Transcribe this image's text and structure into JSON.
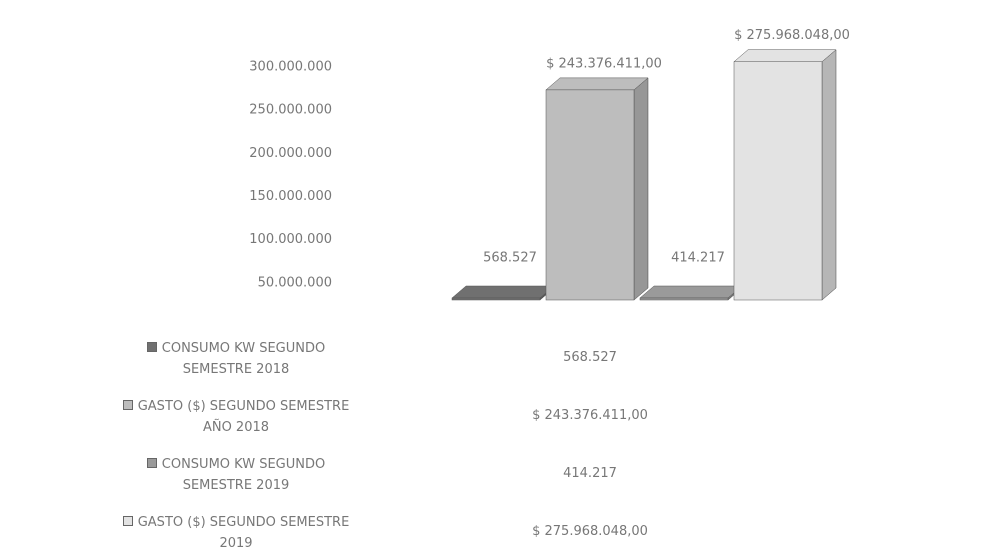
{
  "chart_data": {
    "type": "bar3d",
    "ylim": [
      0,
      300000000
    ],
    "yticks": [
      {
        "value": 50000000,
        "label": "50.000.000"
      },
      {
        "value": 100000000,
        "label": "100.000.000"
      },
      {
        "value": 150000000,
        "label": "150.000.000"
      },
      {
        "value": 200000000,
        "label": "200.000.000"
      },
      {
        "value": 250000000,
        "label": "250.000.000"
      },
      {
        "value": 300000000,
        "label": "300.000.000"
      }
    ],
    "series": [
      {
        "name": "CONSUMO KW SEGUNDO SEMESTRE 2018",
        "color": "#707070",
        "values": [
          568527
        ],
        "value_labels": [
          "568.527"
        ]
      },
      {
        "name": "GASTO ($) SEGUNDO SEMESTRE AÑO 2018",
        "color": "#bdbdbd",
        "values": [
          243376411
        ],
        "value_labels": [
          "$ 243.376.411,00"
        ]
      },
      {
        "name": "CONSUMO KW SEGUNDO SEMESTRE 2019",
        "color": "#9a9a9a",
        "values": [
          414217
        ],
        "value_labels": [
          "414.217"
        ]
      },
      {
        "name": "GASTO ($) SEGUNDO SEMESTRE 2019",
        "color": "#e3e3e3",
        "values": [
          275968048
        ],
        "value_labels": [
          "$ 275.968.048,00"
        ]
      }
    ]
  }
}
